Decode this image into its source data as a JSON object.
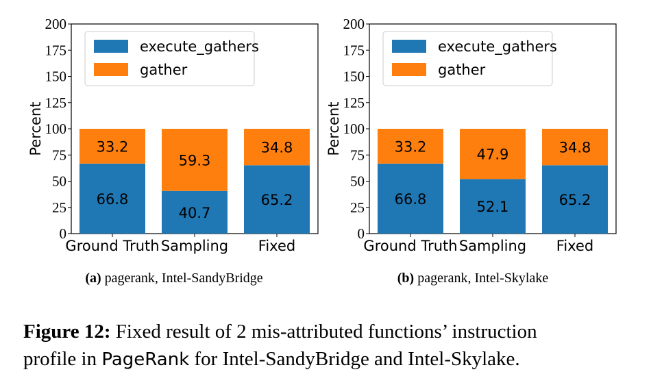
{
  "charts": [
    {
      "subcaption_label": "(a)",
      "subcaption_text": " pagerank, Intel-SandyBridge",
      "chart_data": {
        "type": "bar",
        "stacked": true,
        "categories": [
          "Ground Truth",
          "Sampling",
          "Fixed"
        ],
        "series": [
          {
            "name": "execute_gathers",
            "values": [
              66.8,
              40.7,
              65.2
            ],
            "color": "#1f77b4"
          },
          {
            "name": "gather",
            "values": [
              33.2,
              59.3,
              34.8
            ],
            "color": "#ff7f0e"
          }
        ],
        "ylabel": "Percent",
        "ylim": [
          0,
          200
        ],
        "yticks": [
          0,
          25,
          50,
          75,
          100,
          125,
          150,
          175,
          200
        ],
        "legend": "top-left"
      }
    },
    {
      "subcaption_label": "(b)",
      "subcaption_text": " pagerank, Intel-Skylake",
      "chart_data": {
        "type": "bar",
        "stacked": true,
        "categories": [
          "Ground Truth",
          "Sampling",
          "Fixed"
        ],
        "series": [
          {
            "name": "execute_gathers",
            "values": [
              66.8,
              52.1,
              65.2
            ],
            "color": "#1f77b4"
          },
          {
            "name": "gather",
            "values": [
              33.2,
              47.9,
              34.8
            ],
            "color": "#ff7f0e"
          }
        ],
        "ylabel": "Percent",
        "ylim": [
          0,
          200
        ],
        "yticks": [
          0,
          25,
          50,
          75,
          100,
          125,
          150,
          175,
          200
        ],
        "legend": "top-left"
      }
    }
  ],
  "caption": {
    "label": "Figure 12:",
    "line1": " Fixed result of 2 mis-attributed functions’ instruction",
    "line2_pre": "profile in ",
    "line2_code": "PageRank",
    "line2_post": " for Intel-SandyBridge and Intel-Skylake."
  }
}
